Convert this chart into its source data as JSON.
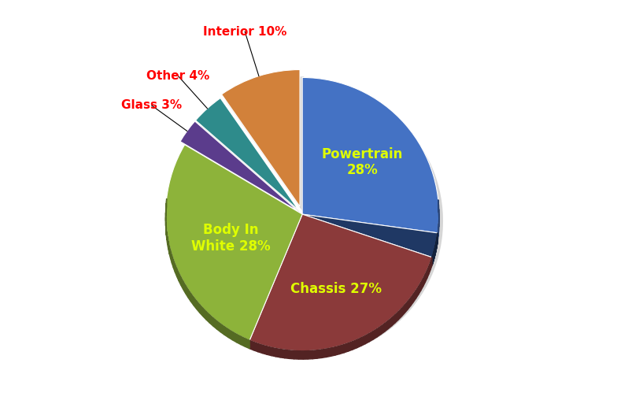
{
  "vals": [
    28,
    3,
    27,
    28,
    3,
    4,
    10
  ],
  "colors": [
    "#4472C4",
    "#1F3864",
    "#8B3A3A",
    "#8DB33A",
    "#5B3C8C",
    "#2E8B8B",
    "#D2813A"
  ],
  "explode": [
    0.0,
    0.0,
    0.0,
    0.0,
    0.04,
    0.04,
    0.06
  ],
  "startangle": 90,
  "inner_labels": [
    {
      "idx": 0,
      "text": "Powertrain\n28%",
      "color": "#DFFF00",
      "r": 0.58
    },
    {
      "idx": 1,
      "text": "",
      "color": "#DFFF00",
      "r": 0.58
    },
    {
      "idx": 2,
      "text": "Chassis 27%",
      "color": "#DFFF00",
      "r": 0.6
    },
    {
      "idx": 3,
      "text": "Body In\nWhite 28%",
      "color": "#DFFF00",
      "r": 0.55
    }
  ],
  "ext_labels": [
    {
      "idx": 4,
      "text": "Glass 3%",
      "color": "#FF0000"
    },
    {
      "idx": 5,
      "text": "Other 4%",
      "color": "#FF0000"
    },
    {
      "idx": 6,
      "text": "Interior 10%",
      "color": "#FF0000"
    }
  ],
  "figsize": [
    7.84,
    5.08
  ],
  "dpi": 100,
  "shadow_color": "#AAAAAA",
  "edge_color": "white",
  "label_fontsize": 12,
  "ext_fontsize": 11
}
